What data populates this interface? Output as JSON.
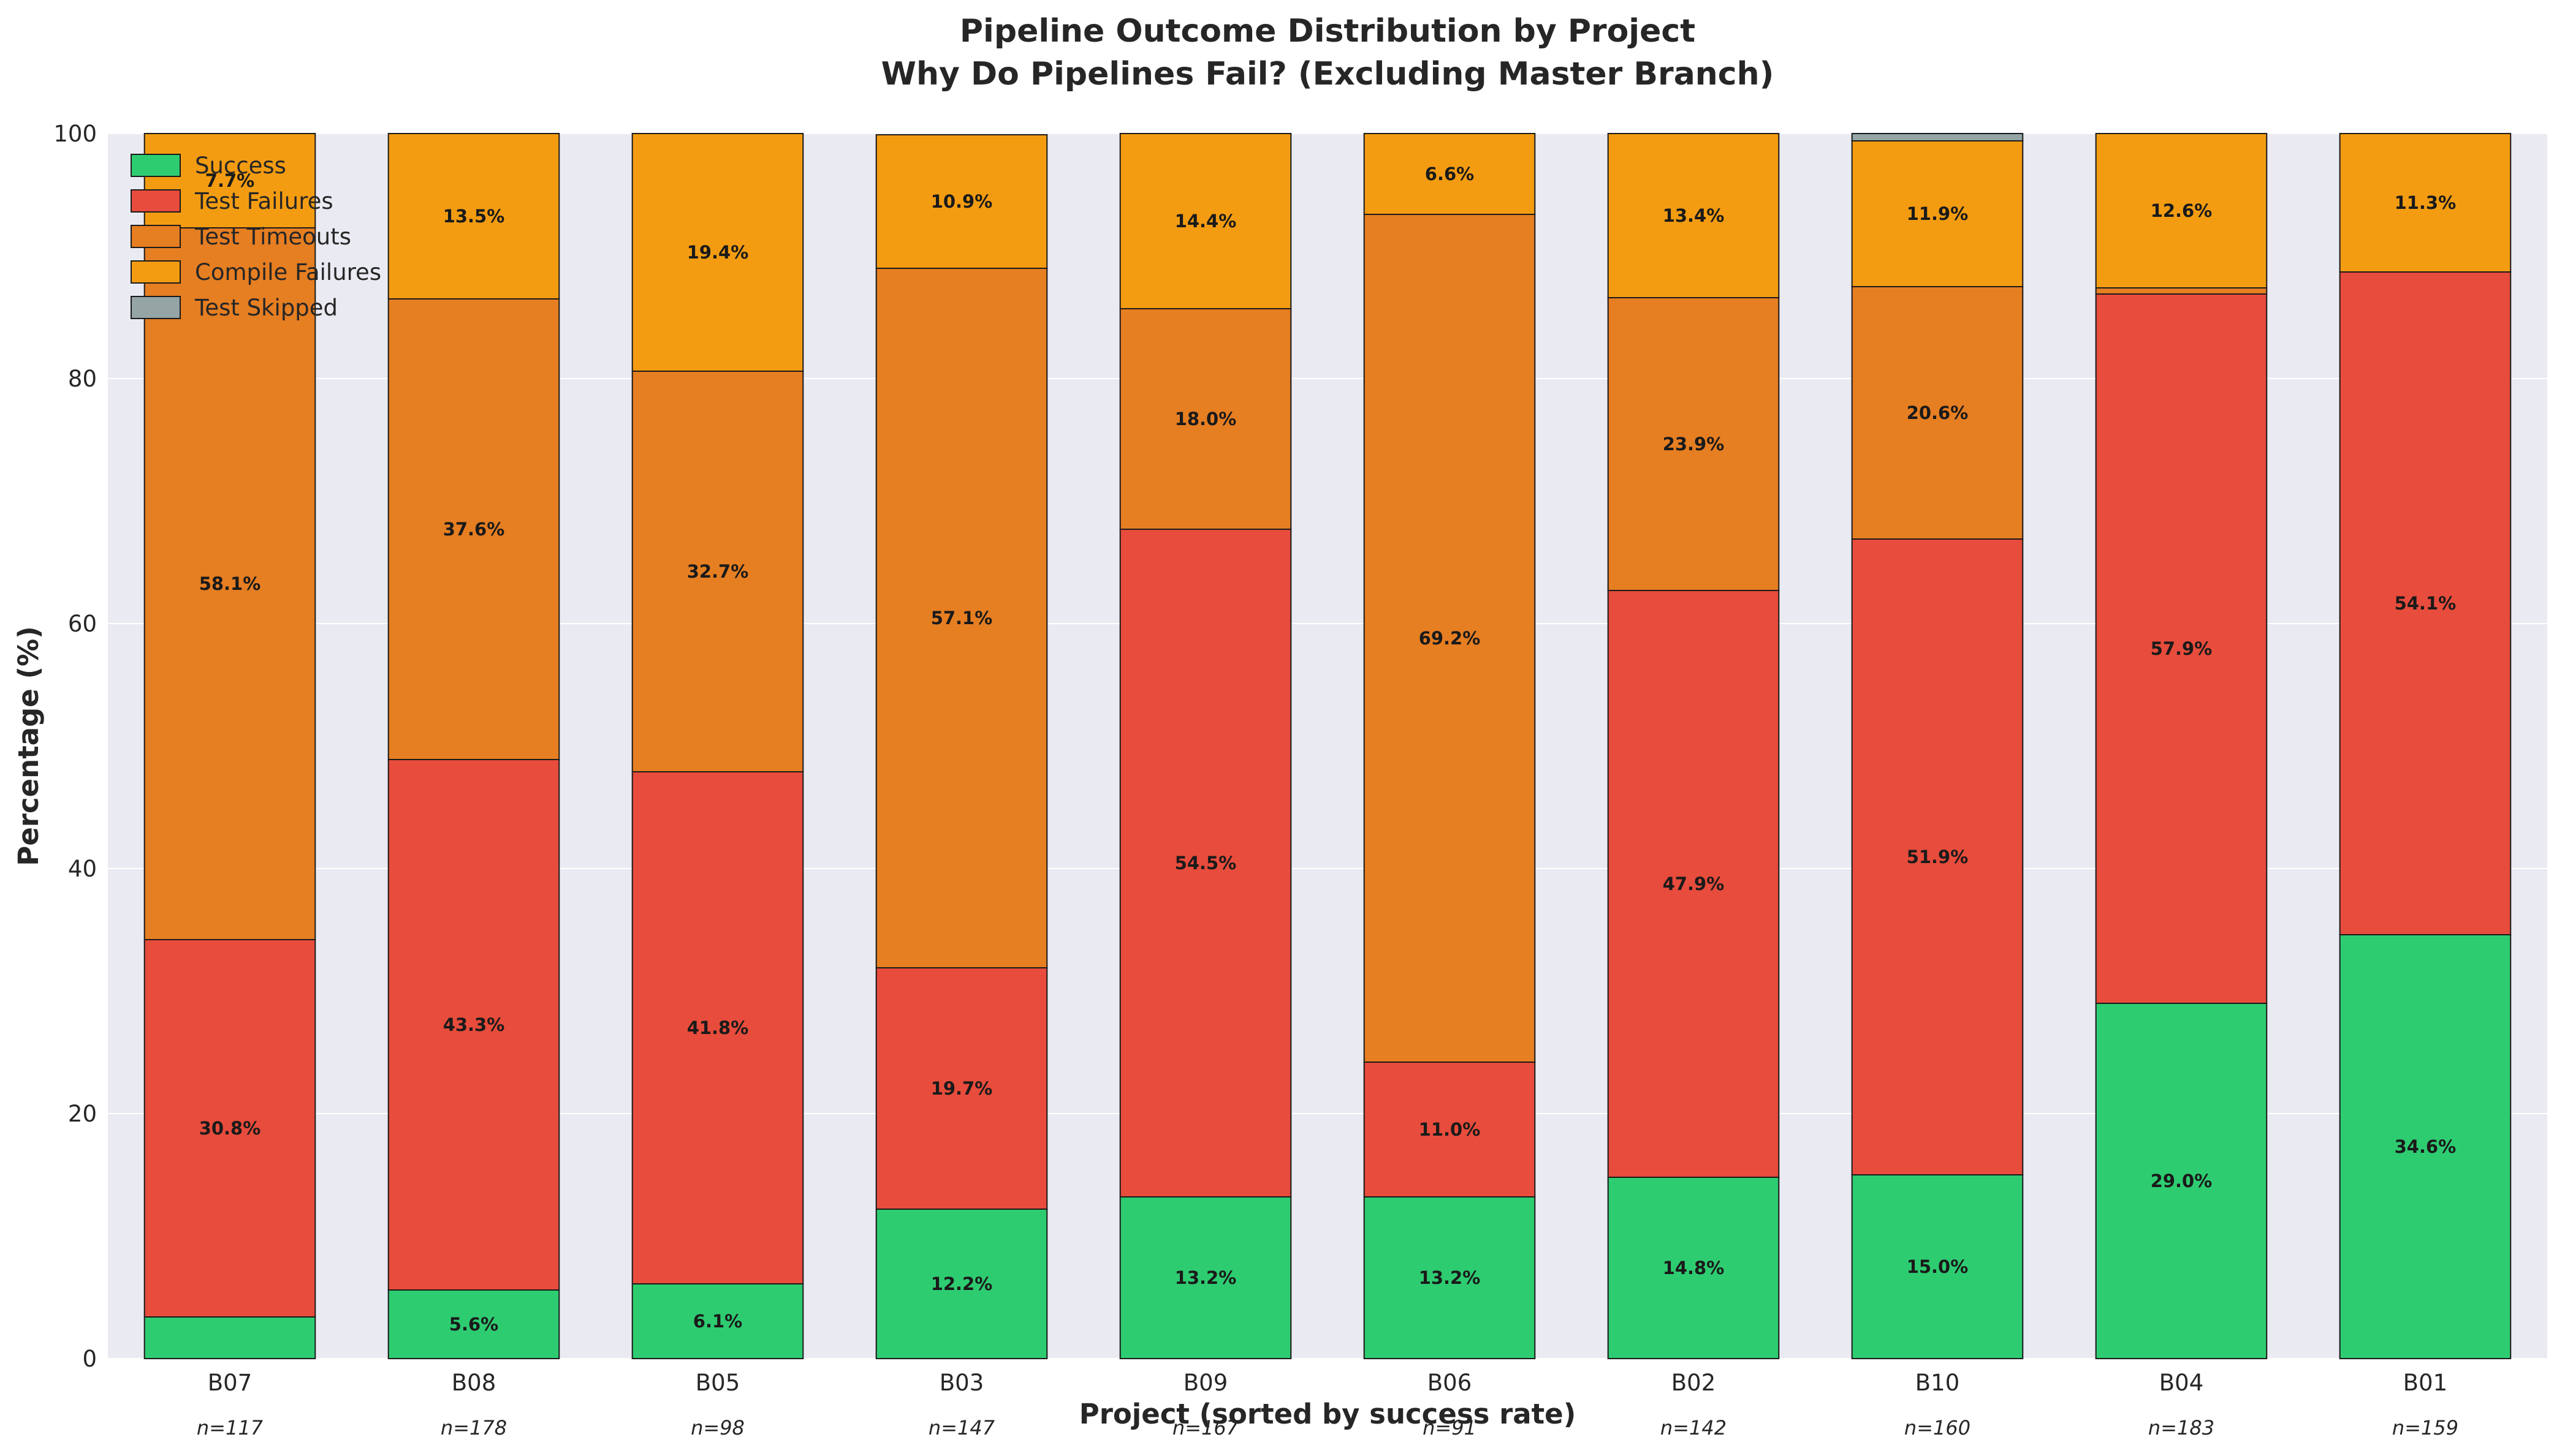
{
  "chart_data": {
    "type": "bar",
    "stacked": true,
    "title": "Pipeline Outcome Distribution by Project",
    "subtitle": "Why Do Pipelines Fail? (Excluding Master Branch)",
    "xlabel": "Project (sorted by success rate)",
    "ylabel": "Percentage (%)",
    "ylim": [
      0,
      100
    ],
    "yticks": [
      0,
      20,
      40,
      60,
      80,
      100
    ],
    "grid": true,
    "legend_position": "top-left",
    "categories": [
      "B07",
      "B08",
      "B05",
      "B03",
      "B09",
      "B06",
      "B02",
      "B10",
      "B04",
      "B01"
    ],
    "sample_sizes": [
      "n=117",
      "n=178",
      "n=98",
      "n=147",
      "n=167",
      "n=91",
      "n=142",
      "n=160",
      "n=183",
      "n=159"
    ],
    "label_threshold": 5,
    "series": [
      {
        "name": "Success",
        "color": "#2ecc71",
        "values": [
          3.4,
          5.6,
          6.1,
          12.2,
          13.2,
          13.2,
          14.8,
          15.0,
          29.0,
          34.6
        ]
      },
      {
        "name": "Test Failures",
        "color": "#e74c3c",
        "values": [
          30.8,
          43.3,
          41.8,
          19.7,
          54.5,
          11.0,
          47.9,
          51.9,
          57.9,
          54.1
        ]
      },
      {
        "name": "Test Timeouts",
        "color": "#e67e22",
        "values": [
          58.1,
          37.6,
          32.7,
          57.1,
          18.0,
          69.2,
          23.9,
          20.6,
          0.5,
          0.0
        ]
      },
      {
        "name": "Compile Failures",
        "color": "#f39c12",
        "values": [
          7.7,
          13.5,
          19.4,
          10.9,
          14.4,
          6.6,
          13.4,
          11.9,
          12.6,
          11.3
        ]
      },
      {
        "name": "Test Skipped",
        "color": "#95a5a6",
        "values": [
          0.0,
          0.0,
          0.0,
          0.0,
          0.0,
          0.0,
          0.0,
          0.6,
          0.0,
          0.0
        ]
      }
    ],
    "colors": {
      "plot_background": "#eaeaf2",
      "grid": "#ffffff",
      "bar_edge": "#1a1a1a"
    }
  }
}
